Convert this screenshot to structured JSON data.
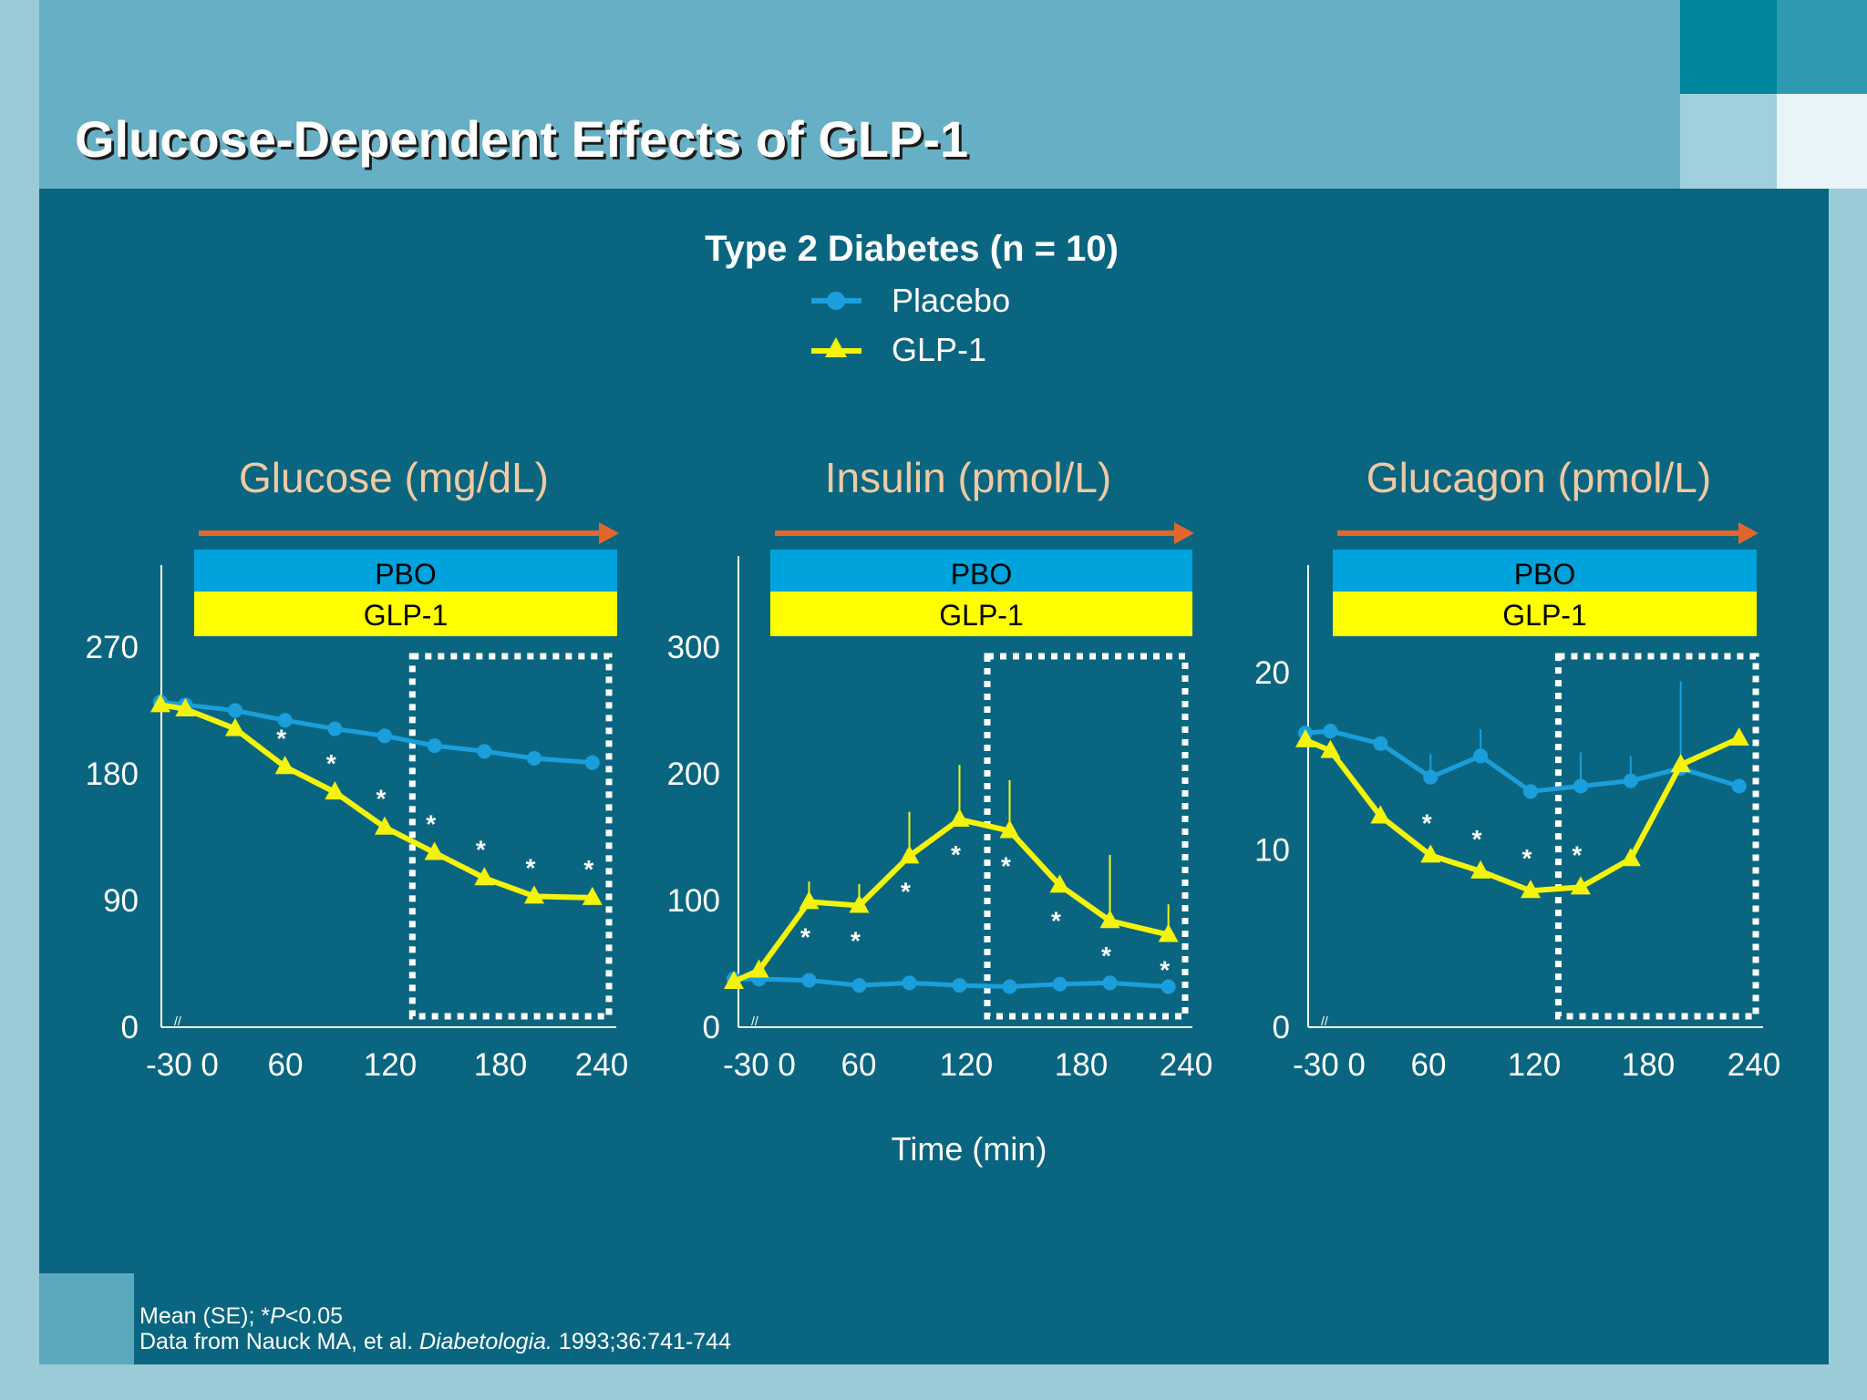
{
  "slide": {
    "title": "Glucose-Dependent Effects of GLP-1",
    "colors": {
      "background": "#9ccbd8",
      "header": "#66afc5",
      "panel": "#0a6680",
      "placebo": "#1a9fdc",
      "glp1": "#f4f40a",
      "arrow": "#e2662c",
      "pbo_bar": "#00a3dc",
      "glp1_bar": "#ffff00"
    }
  },
  "legend": {
    "heading": "Type 2 Diabetes (n = 10)",
    "items": [
      {
        "label": "Placebo",
        "icon": "circle-line-icon"
      },
      {
        "label": "GLP-1",
        "icon": "triangle-line-icon"
      }
    ]
  },
  "xlabel": "Time (min)",
  "footnote": {
    "line1_prefix": "Mean (SE); *",
    "line1_p": "P",
    "line1_suffix": "<0.05",
    "line2_prefix": "Data from Nauck MA, et al. ",
    "line2_journal": "Diabetologia.",
    "line2_suffix": " 1993;36:741-744"
  },
  "chart_data": [
    {
      "type": "line",
      "title": "Glucose (mg/dL)",
      "bar_labels": [
        "PBO",
        "GLP-1"
      ],
      "ylim": [
        0,
        270
      ],
      "yticks": [
        0,
        90,
        180,
        270
      ],
      "xlim": [
        -30,
        240
      ],
      "xticks": [
        -30,
        0,
        60,
        120,
        180,
        240
      ],
      "xtick_labels": [
        "-30 0",
        "60",
        "120",
        "180",
        "240"
      ],
      "highlight_window": [
        120,
        240
      ],
      "series": [
        {
          "name": "Placebo",
          "x": [
            -30,
            -15,
            15,
            45,
            75,
            105,
            135,
            165,
            195,
            230
          ],
          "y": [
            231,
            229,
            225,
            218,
            212,
            207,
            200,
            196,
            191,
            188
          ]
        },
        {
          "name": "GLP-1",
          "x": [
            -30,
            -15,
            15,
            45,
            75,
            105,
            135,
            165,
            195,
            230
          ],
          "y": [
            229,
            226,
            212,
            185,
            167,
            142,
            124,
            106,
            93,
            92
          ]
        }
      ],
      "significant_x": [
        45,
        75,
        105,
        135,
        165,
        195,
        230
      ]
    },
    {
      "type": "line",
      "title": "Insulin (pmol/L)",
      "bar_labels": [
        "PBO",
        "GLP-1"
      ],
      "ylim": [
        0,
        300
      ],
      "yticks": [
        0,
        100,
        200,
        300
      ],
      "xlim": [
        -30,
        240
      ],
      "xticks": [
        -30,
        0,
        60,
        120,
        180,
        240
      ],
      "xtick_labels": [
        "-30 0",
        "60",
        "120",
        "180",
        "240"
      ],
      "highlight_window": [
        120,
        240
      ],
      "series": [
        {
          "name": "Placebo",
          "x": [
            -30,
            -15,
            15,
            45,
            75,
            105,
            135,
            165,
            195,
            230
          ],
          "y": [
            38,
            38,
            37,
            33,
            35,
            33,
            32,
            34,
            35,
            32
          ]
        },
        {
          "name": "GLP-1",
          "x": [
            -30,
            -15,
            15,
            45,
            75,
            105,
            135,
            165,
            195,
            230
          ],
          "y": [
            36,
            45,
            99,
            96,
            135,
            164,
            155,
            112,
            84,
            73
          ]
        },
        {
          "name": "GLP-1 SE",
          "x": [
            15,
            45,
            75,
            105,
            135,
            195,
            230
          ],
          "y": [
            115,
            113,
            170,
            207,
            195,
            136,
            97
          ]
        }
      ],
      "significant_x": [
        15,
        45,
        75,
        105,
        135,
        165,
        195,
        230
      ]
    },
    {
      "type": "line",
      "title": "Glucagon (pmol/L)",
      "bar_labels": [
        "PBO",
        "GLP-1"
      ],
      "ylim": [
        0,
        20
      ],
      "yticks": [
        0,
        10,
        20
      ],
      "xlim": [
        -30,
        240
      ],
      "xticks": [
        -30,
        0,
        60,
        120,
        180,
        240
      ],
      "xtick_labels": [
        "-30 0",
        "60",
        "120",
        "180",
        "240"
      ],
      "highlight_window": [
        120,
        240
      ],
      "series": [
        {
          "name": "Placebo",
          "x": [
            -30,
            -15,
            15,
            45,
            75,
            105,
            135,
            165,
            195,
            230
          ],
          "y": [
            16.6,
            16.7,
            16.0,
            14.1,
            15.3,
            13.3,
            13.6,
            13.9,
            14.6,
            13.6
          ]
        },
        {
          "name": "GLP-1",
          "x": [
            -30,
            -15,
            15,
            45,
            75,
            105,
            135,
            165,
            195,
            230
          ],
          "y": [
            16.2,
            15.6,
            11.9,
            9.7,
            8.8,
            7.7,
            7.9,
            9.5,
            14.8,
            16.3
          ]
        },
        {
          "name": "Placebo SE",
          "x": [
            45,
            75,
            135,
            165,
            195
          ],
          "y": [
            15.4,
            16.8,
            15.5,
            15.3,
            19.5
          ]
        }
      ],
      "significant_x": [
        45,
        75,
        105,
        135
      ]
    }
  ]
}
